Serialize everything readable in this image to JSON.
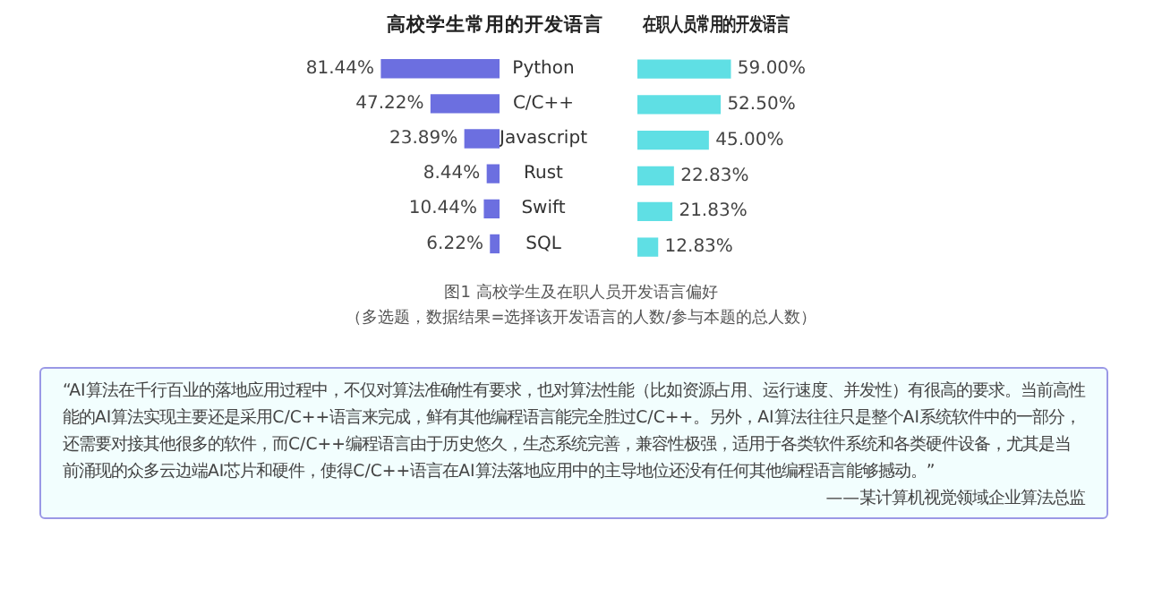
{
  "chart_data": [
    {
      "type": "bar",
      "orientation": "horizontal",
      "title": "高校学生常用的开发语言",
      "categories": [
        "Python",
        "C/C++",
        "Javascript",
        "Rust",
        "Swift",
        "SQL"
      ],
      "values": [
        81.44,
        47.22,
        23.89,
        8.44,
        10.44,
        6.22
      ],
      "value_labels": [
        "81.44%",
        "47.22%",
        "23.89%",
        "8.44%",
        "10.44%",
        "6.22%"
      ],
      "color": "#6c6fe0",
      "grid": false,
      "legend": false,
      "tick_labels": "y",
      "annotations": [
        "图1 高校学生及在职人员开发语言偏好",
        "（多选题，数据结果=选择该开发语言的人数/参与本题的总人数）",
        "“AI算法在千行百业的落地应用过程中，不仅对算法准确性有要求，也对算法性能（比如资源占用、运行速度、并发性）有很高的要求。当前高性能的AI算法实现主要还是采用C/C++语言来完成，鲜有其他编程语言能完全胜过C/C++。另外，AI算法往往只是整个AI系统软件中的一部分，还需要对接其他很多的软件，而C/C++编程语言由于历史悠久，生态系统完善，兼容性极强，适用于各类软件系统和各类硬件设备，尤其是当前涌现的众多云边端AI芯片和硬件，使得C/C++语言在AI算法落地应用中的主导地位还没有任何其他编程语言能够撼动。”",
        "——某计算机视觉领域企业算法总监"
      ]
    },
    {
      "type": "bar",
      "orientation": "horizontal",
      "title": "在职人员常用的开发语言",
      "categories": [
        null,
        null,
        null,
        null,
        null,
        null
      ],
      "values": [
        59.0,
        52.5,
        45.0,
        22.83,
        21.83,
        12.83
      ],
      "value_labels": [
        "59.00%",
        "52.50%",
        "45.00%",
        "22.83%",
        "21.83%",
        "12.83%"
      ],
      "color": "#5fdfe4",
      "grid": false,
      "legend": false,
      "tick_labels": false
    }
  ]
}
